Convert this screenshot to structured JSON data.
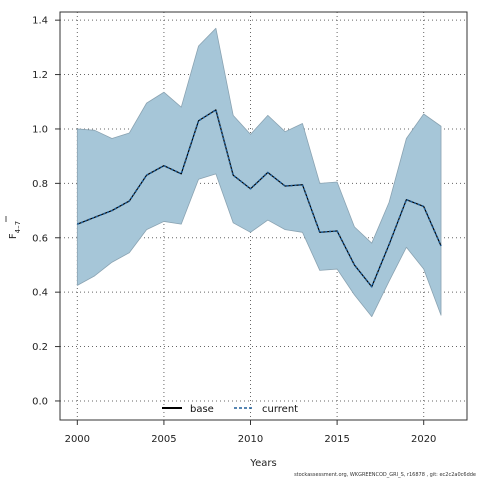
{
  "chart_data": {
    "type": "area",
    "xlabel": "Years",
    "ylabel_main": "F",
    "ylabel_subscript": "4–7",
    "xlim": [
      1999,
      2022.5
    ],
    "ylim": [
      -0.07,
      1.43
    ],
    "xticks": [
      2000,
      2005,
      2010,
      2015,
      2020
    ],
    "yticks": [
      0.0,
      0.2,
      0.4,
      0.6,
      0.8,
      1.0,
      1.2,
      1.4
    ],
    "ytick_labels": [
      "0.0",
      "0.2",
      "0.4",
      "0.6",
      "0.8",
      "1.0",
      "1.2",
      "1.4"
    ],
    "grid": true,
    "legend_position": "bottom-center",
    "x": [
      2000,
      2001,
      2002,
      2003,
      2004,
      2005,
      2006,
      2007,
      2008,
      2009,
      2010,
      2011,
      2012,
      2013,
      2014,
      2015,
      2016,
      2017,
      2018,
      2019,
      2020,
      2021
    ],
    "band": {
      "upper": [
        1.0,
        0.995,
        0.965,
        0.985,
        1.095,
        1.135,
        1.08,
        1.305,
        1.37,
        1.05,
        0.98,
        1.05,
        0.99,
        1.02,
        0.8,
        0.805,
        0.64,
        0.58,
        0.73,
        0.965,
        1.055,
        1.01
      ],
      "lower": [
        0.425,
        0.46,
        0.51,
        0.545,
        0.63,
        0.66,
        0.65,
        0.815,
        0.835,
        0.655,
        0.62,
        0.665,
        0.63,
        0.62,
        0.48,
        0.485,
        0.39,
        0.31,
        0.44,
        0.565,
        0.485,
        0.315
      ],
      "color": "#a6c6d8",
      "edge_color": "#8aa3b2"
    },
    "series": [
      {
        "name": "base",
        "color": "#000000",
        "style": "solid",
        "values": [
          0.65,
          0.675,
          0.7,
          0.735,
          0.83,
          0.865,
          0.835,
          1.03,
          1.07,
          0.83,
          0.78,
          0.84,
          0.79,
          0.795,
          0.62,
          0.625,
          0.5,
          0.42,
          0.575,
          0.74,
          0.715,
          0.57
        ]
      },
      {
        "name": "current",
        "color": "#1f5f9a",
        "style": "dotted",
        "values": [
          0.65,
          0.675,
          0.7,
          0.735,
          0.83,
          0.865,
          0.835,
          1.03,
          1.07,
          0.83,
          0.78,
          0.84,
          0.79,
          0.795,
          0.62,
          0.625,
          0.5,
          0.42,
          0.575,
          0.74,
          0.715,
          0.57
        ]
      }
    ],
    "legend": [
      {
        "label": "base",
        "style": "solid",
        "color": "#000000"
      },
      {
        "label": "current",
        "style": "dotted",
        "color": "#1f5f9a"
      }
    ],
    "footer": "stockassessment.org, WKGREENCOD_GRI_S, r16878 , git: ec2c2a0c6dde"
  }
}
